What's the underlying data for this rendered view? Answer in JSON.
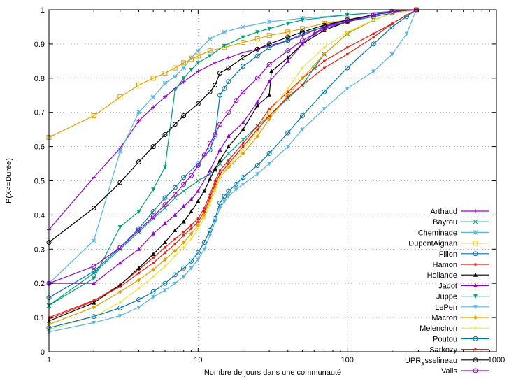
{
  "chart_data": {
    "type": "line",
    "title": "",
    "xlabel": "Nombre de jours dans une communauté",
    "ylabel": "P(X<=Durée)",
    "xscale": "log",
    "xlim": [
      1,
      1000
    ],
    "ylim": [
      0,
      1
    ],
    "x_ticks": [
      {
        "v": 1,
        "label": "1"
      },
      {
        "v": 10,
        "label": "10"
      },
      {
        "v": 100,
        "label": "100"
      },
      {
        "v": 1000,
        "label": "1000"
      }
    ],
    "y_ticks": [
      {
        "v": 0,
        "label": "0"
      },
      {
        "v": 0.1,
        "label": "0.1"
      },
      {
        "v": 0.2,
        "label": "0.2"
      },
      {
        "v": 0.3,
        "label": "0.3"
      },
      {
        "v": 0.4,
        "label": "0.4"
      },
      {
        "v": 0.5,
        "label": "0.5"
      },
      {
        "v": 0.6,
        "label": "0.6"
      },
      {
        "v": 0.7,
        "label": "0.7"
      },
      {
        "v": 0.8,
        "label": "0.8"
      },
      {
        "v": 0.9,
        "label": "0.9"
      },
      {
        "v": 1,
        "label": "1"
      }
    ],
    "grid": true,
    "legend_position": "bottom-right",
    "series": [
      {
        "name": "Arthaud",
        "color": "#9400d3",
        "marker": "plus",
        "x": [
          1,
          2,
          3,
          4,
          5,
          6,
          7,
          8,
          10,
          13,
          16,
          20,
          25,
          30,
          40,
          50,
          60,
          70,
          80,
          100,
          150,
          200,
          290
        ],
        "y": [
          0.357,
          0.51,
          0.595,
          0.675,
          0.715,
          0.745,
          0.77,
          0.79,
          0.82,
          0.845,
          0.86,
          0.875,
          0.885,
          0.895,
          0.91,
          0.925,
          0.94,
          0.95,
          0.96,
          0.97,
          0.985,
          0.993,
          1.0
        ]
      },
      {
        "name": "Bayrou",
        "color": "#009e73",
        "marker": "x",
        "x": [
          1,
          2,
          3,
          4,
          5,
          6,
          7,
          8,
          10,
          12,
          13,
          14,
          16,
          20,
          25,
          30,
          40,
          50,
          60,
          70,
          100,
          150,
          200,
          290
        ],
        "y": [
          0.135,
          0.23,
          0.3,
          0.35,
          0.39,
          0.42,
          0.45,
          0.47,
          0.5,
          0.52,
          0.53,
          0.55,
          0.58,
          0.62,
          0.66,
          0.69,
          0.74,
          0.78,
          0.83,
          0.87,
          0.93,
          0.97,
          0.99,
          1.0
        ]
      },
      {
        "name": "Cheminade",
        "color": "#56b4e9",
        "marker": "star",
        "x": [
          1,
          2,
          3,
          4,
          5,
          6,
          7,
          8,
          9,
          10,
          12,
          15,
          20,
          30,
          50,
          100,
          200,
          290
        ],
        "y": [
          0.2,
          0.325,
          0.585,
          0.7,
          0.745,
          0.785,
          0.805,
          0.83,
          0.86,
          0.88,
          0.915,
          0.935,
          0.95,
          0.965,
          0.975,
          0.985,
          0.995,
          1.0
        ]
      },
      {
        "name": "DupontAignan",
        "color": "#e69f00",
        "marker": "square",
        "x": [
          1,
          2,
          3,
          4,
          5,
          6,
          7,
          8,
          9,
          10,
          12,
          15,
          20,
          25,
          30,
          40,
          50,
          70,
          100,
          150,
          200,
          290
        ],
        "y": [
          0.627,
          0.69,
          0.745,
          0.78,
          0.8,
          0.815,
          0.83,
          0.845,
          0.855,
          0.865,
          0.88,
          0.89,
          0.905,
          0.915,
          0.925,
          0.935,
          0.945,
          0.96,
          0.97,
          0.985,
          0.995,
          1.0
        ]
      },
      {
        "name": "Fillon",
        "color": "#0072b2",
        "marker": "circle",
        "x": [
          1,
          2,
          3,
          4,
          5,
          6,
          7,
          8,
          10,
          12,
          13,
          14,
          15,
          16,
          20,
          25,
          30,
          40,
          50,
          70,
          100,
          150,
          200,
          290
        ],
        "y": [
          0.158,
          0.235,
          0.305,
          0.36,
          0.41,
          0.45,
          0.48,
          0.51,
          0.55,
          0.59,
          0.63,
          0.75,
          0.77,
          0.79,
          0.835,
          0.865,
          0.89,
          0.91,
          0.93,
          0.95,
          0.965,
          0.98,
          0.99,
          1.0
        ]
      },
      {
        "name": "Hamon",
        "color": "#e51e10",
        "marker": "dot",
        "x": [
          1,
          2,
          3,
          4,
          5,
          6,
          7,
          8,
          9,
          10,
          11,
          12,
          13,
          14,
          16,
          20,
          25,
          30,
          40,
          50,
          70,
          100,
          150,
          200,
          290
        ],
        "y": [
          0.095,
          0.148,
          0.196,
          0.24,
          0.275,
          0.305,
          0.33,
          0.35,
          0.37,
          0.39,
          0.42,
          0.46,
          0.5,
          0.53,
          0.56,
          0.61,
          0.66,
          0.71,
          0.76,
          0.8,
          0.85,
          0.89,
          0.93,
          0.96,
          1.0
        ]
      },
      {
        "name": "Hollande",
        "color": "#000000",
        "marker": "triangle",
        "x": [
          1,
          2,
          3,
          4,
          5,
          6,
          7,
          8,
          9,
          10,
          11,
          12,
          13,
          14,
          16,
          20,
          25,
          30,
          31,
          40,
          50,
          70,
          100,
          150,
          200,
          290
        ],
        "y": [
          0.09,
          0.143,
          0.195,
          0.245,
          0.285,
          0.32,
          0.355,
          0.38,
          0.41,
          0.44,
          0.47,
          0.505,
          0.535,
          0.56,
          0.6,
          0.65,
          0.72,
          0.75,
          0.82,
          0.86,
          0.9,
          0.94,
          0.965,
          0.985,
          0.995,
          1.0
        ]
      },
      {
        "name": "Jadot",
        "color": "#9400d3",
        "marker": "triangle",
        "x": [
          1,
          2,
          3,
          4,
          5,
          6,
          7,
          8,
          9,
          10,
          12,
          14,
          16,
          20,
          25,
          30,
          40,
          50,
          60,
          70,
          100,
          150,
          200,
          290
        ],
        "y": [
          0.2,
          0.2,
          0.26,
          0.3,
          0.345,
          0.375,
          0.4,
          0.425,
          0.445,
          0.47,
          0.53,
          0.59,
          0.63,
          0.67,
          0.73,
          0.79,
          0.85,
          0.9,
          0.93,
          0.95,
          0.97,
          0.985,
          0.995,
          1.0
        ]
      },
      {
        "name": "Juppe",
        "color": "#009e73",
        "marker": "tridown",
        "x": [
          1,
          2,
          3,
          4,
          5,
          6,
          7,
          8,
          9,
          10,
          12,
          15,
          20,
          25,
          30,
          40,
          50,
          100,
          200,
          290
        ],
        "y": [
          0.135,
          0.215,
          0.365,
          0.41,
          0.475,
          0.54,
          0.765,
          0.8,
          0.825,
          0.845,
          0.865,
          0.895,
          0.92,
          0.935,
          0.945,
          0.96,
          0.97,
          0.985,
          0.995,
          1.0
        ]
      },
      {
        "name": "LePen",
        "color": "#56b4e9",
        "marker": "tridown",
        "x": [
          1,
          2,
          3,
          4,
          5,
          6,
          7,
          8,
          9,
          10,
          11,
          12,
          13,
          14,
          15,
          16,
          18,
          20,
          25,
          30,
          40,
          50,
          70,
          100,
          150,
          200,
          250,
          290
        ],
        "y": [
          0.058,
          0.085,
          0.105,
          0.13,
          0.16,
          0.18,
          0.2,
          0.22,
          0.245,
          0.27,
          0.3,
          0.34,
          0.38,
          0.42,
          0.44,
          0.455,
          0.475,
          0.49,
          0.52,
          0.55,
          0.6,
          0.65,
          0.71,
          0.77,
          0.82,
          0.87,
          0.93,
          1.0
        ]
      },
      {
        "name": "Macron",
        "color": "#e69f00",
        "marker": "diamond",
        "x": [
          1,
          2,
          3,
          4,
          5,
          6,
          7,
          8,
          9,
          10,
          11,
          12,
          13,
          14,
          16,
          20,
          25,
          30,
          40,
          50,
          70,
          100,
          150,
          200,
          290
        ],
        "y": [
          0.08,
          0.13,
          0.175,
          0.21,
          0.24,
          0.27,
          0.295,
          0.32,
          0.345,
          0.37,
          0.4,
          0.44,
          0.48,
          0.51,
          0.54,
          0.58,
          0.63,
          0.68,
          0.75,
          0.8,
          0.87,
          0.93,
          0.97,
          0.99,
          1.0
        ]
      },
      {
        "name": "Melenchon",
        "color": "#f0e442",
        "marker": "dot",
        "x": [
          1,
          2,
          3,
          4,
          5,
          6,
          7,
          8,
          9,
          10,
          11,
          12,
          13,
          14,
          16,
          20,
          25,
          30,
          40,
          50,
          70,
          100,
          150,
          200,
          290
        ],
        "y": [
          0.065,
          0.103,
          0.145,
          0.185,
          0.22,
          0.25,
          0.28,
          0.305,
          0.33,
          0.36,
          0.39,
          0.43,
          0.47,
          0.51,
          0.545,
          0.59,
          0.645,
          0.7,
          0.77,
          0.83,
          0.89,
          0.935,
          0.97,
          0.99,
          1.0
        ]
      },
      {
        "name": "Poutou",
        "color": "#0072b2",
        "marker": "circle",
        "x": [
          1,
          2,
          3,
          4,
          5,
          6,
          7,
          8,
          9,
          10,
          11,
          12,
          13,
          14,
          15,
          16,
          18,
          20,
          25,
          30,
          40,
          50,
          70,
          100,
          150,
          200,
          250,
          290
        ],
        "y": [
          0.07,
          0.103,
          0.128,
          0.152,
          0.175,
          0.2,
          0.225,
          0.245,
          0.265,
          0.29,
          0.32,
          0.355,
          0.39,
          0.435,
          0.455,
          0.47,
          0.49,
          0.51,
          0.545,
          0.58,
          0.64,
          0.69,
          0.76,
          0.83,
          0.9,
          0.95,
          0.98,
          1.0
        ]
      },
      {
        "name": "Sarkozy",
        "color": "#e51e10",
        "marker": "dot",
        "x": [
          1,
          2,
          3,
          4,
          5,
          6,
          7,
          8,
          9,
          10,
          11,
          12,
          13,
          14,
          16,
          20,
          25,
          30,
          40,
          50,
          70,
          100,
          150,
          200,
          290
        ],
        "y": [
          0.1,
          0.15,
          0.19,
          0.23,
          0.26,
          0.29,
          0.315,
          0.34,
          0.36,
          0.38,
          0.41,
          0.45,
          0.49,
          0.52,
          0.55,
          0.6,
          0.65,
          0.69,
          0.745,
          0.78,
          0.83,
          0.87,
          0.92,
          0.96,
          1.0
        ]
      },
      {
        "name": "UPR_Asselineau",
        "color": "#000000",
        "marker": "circle",
        "x": [
          1,
          2,
          3,
          4,
          5,
          6,
          7,
          8,
          10,
          12,
          13,
          14,
          16,
          20,
          25,
          30,
          40,
          50,
          70,
          100,
          150,
          200,
          290
        ],
        "y": [
          0.32,
          0.42,
          0.495,
          0.555,
          0.6,
          0.635,
          0.665,
          0.69,
          0.725,
          0.76,
          0.78,
          0.815,
          0.83,
          0.86,
          0.885,
          0.9,
          0.92,
          0.935,
          0.955,
          0.97,
          0.985,
          0.995,
          1.0
        ]
      },
      {
        "name": "Valls",
        "color": "#9400d3",
        "marker": "circle",
        "x": [
          1,
          2,
          3,
          4,
          5,
          6,
          7,
          8,
          9,
          10,
          11,
          12,
          13,
          14,
          16,
          18,
          20,
          25,
          30,
          40,
          50,
          70,
          100,
          150,
          200,
          290
        ],
        "y": [
          0.2,
          0.25,
          0.305,
          0.355,
          0.395,
          0.43,
          0.46,
          0.49,
          0.515,
          0.545,
          0.575,
          0.61,
          0.635,
          0.665,
          0.7,
          0.735,
          0.76,
          0.8,
          0.84,
          0.88,
          0.91,
          0.945,
          0.965,
          0.985,
          0.995,
          1.0
        ]
      }
    ]
  }
}
